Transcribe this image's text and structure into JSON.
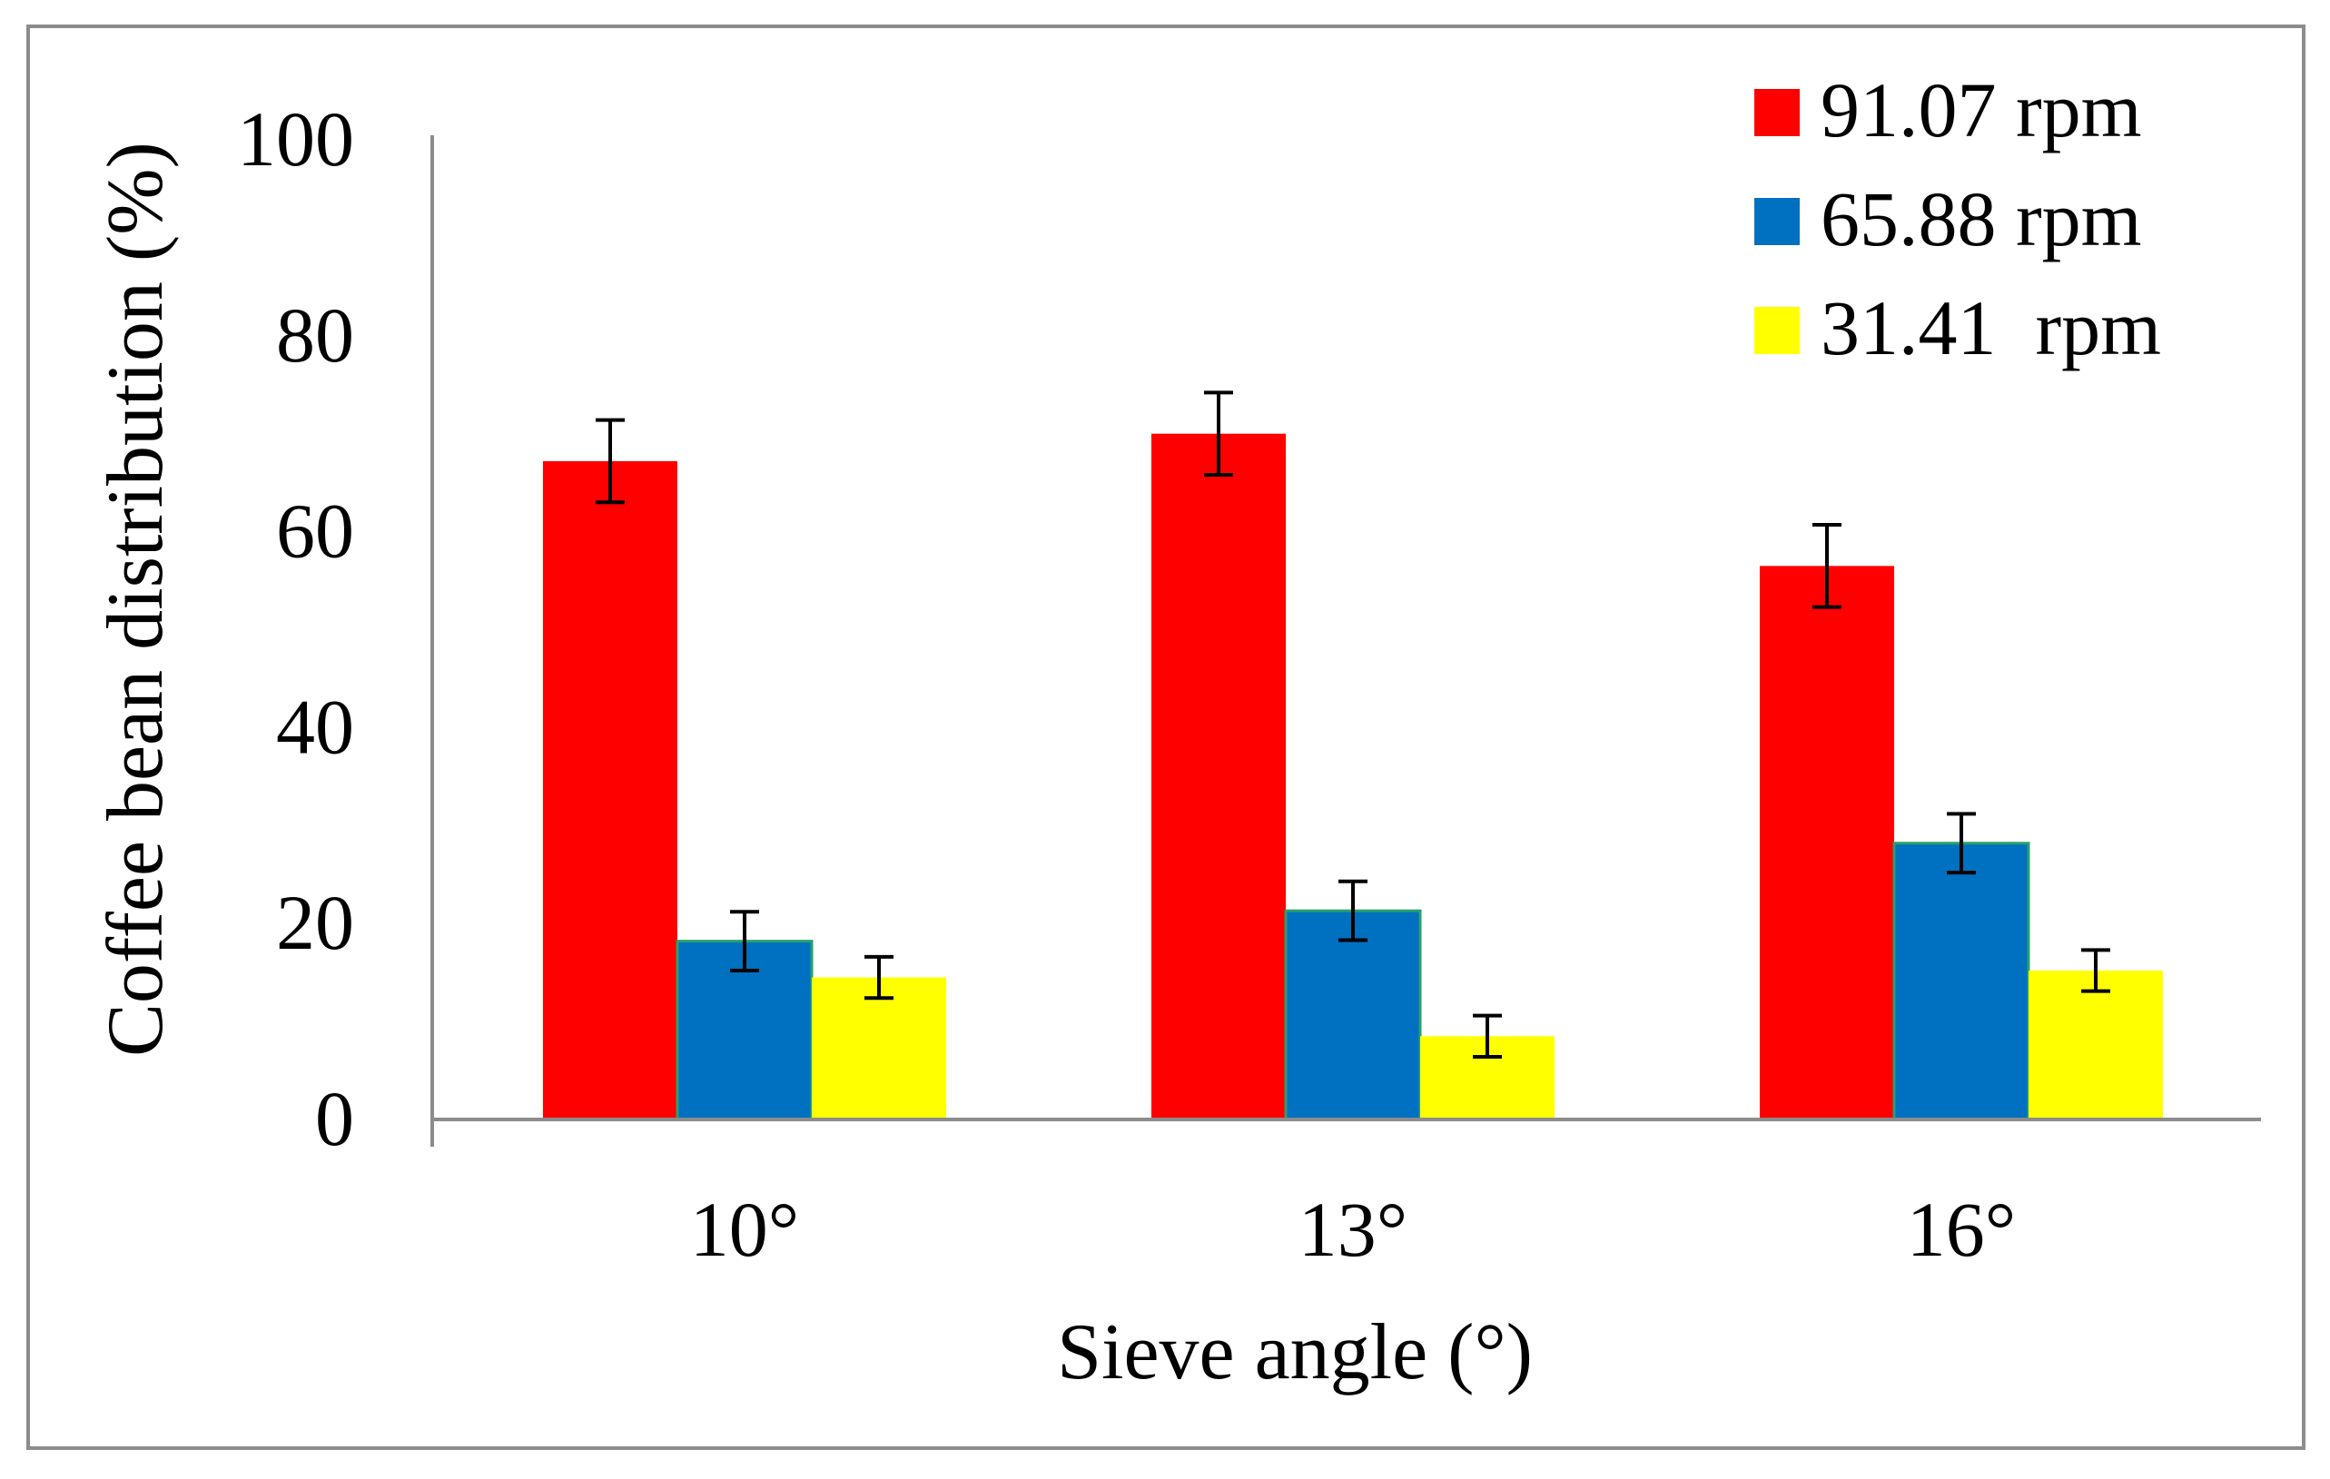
{
  "chart_data": {
    "type": "bar",
    "title": "",
    "xlabel": "Sieve angle (°)",
    "ylabel": "Coffee bean distribution (%)",
    "ylim": [
      0,
      100
    ],
    "yticks": [
      "0",
      "20",
      "40",
      "60",
      "80",
      "100"
    ],
    "categories": [
      "10°",
      "13°",
      "16°"
    ],
    "legend_position": "top-right",
    "series": [
      {
        "name": "91.07 rpm",
        "color": "#ff0000",
        "values": [
          67.2,
          70.0,
          56.5
        ],
        "errors": [
          4.2,
          4.2,
          4.2
        ]
      },
      {
        "name": "65.88 rpm",
        "color": "#0070c0",
        "values": [
          18.2,
          21.3,
          28.2
        ],
        "errors": [
          3.0,
          3.0,
          3.0
        ]
      },
      {
        "name": "31.41  rpm",
        "color": "#ffff00",
        "values": [
          14.5,
          8.5,
          15.2
        ],
        "errors": [
          2.1,
          2.1,
          2.1
        ]
      }
    ]
  }
}
